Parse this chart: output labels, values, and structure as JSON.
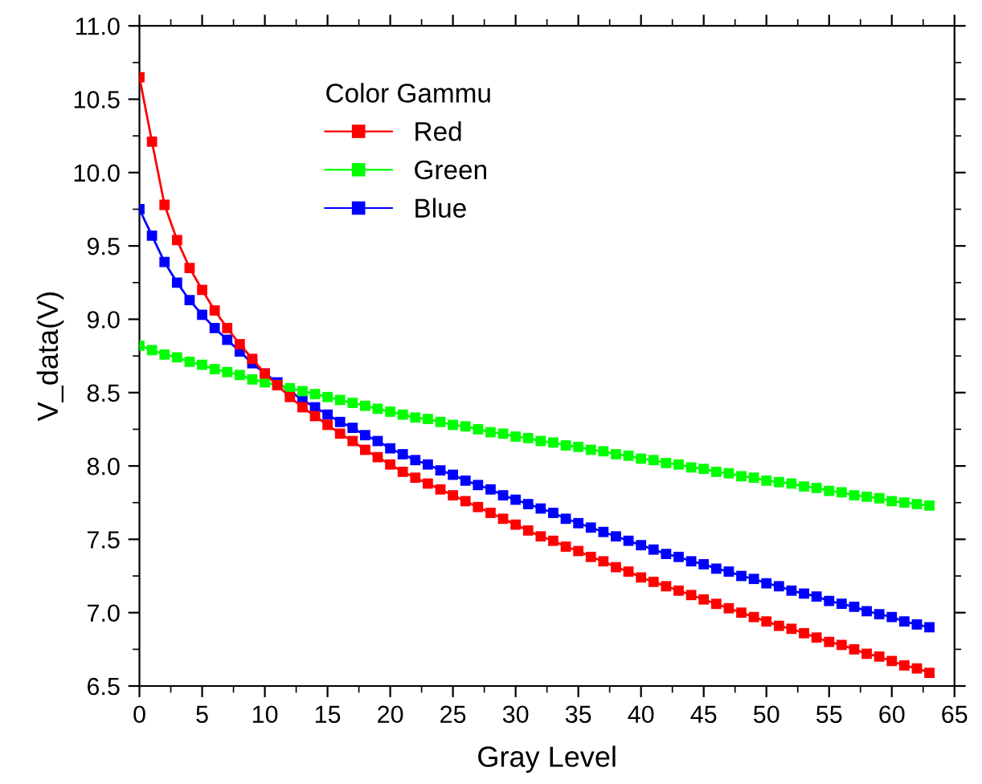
{
  "chart_data": {
    "type": "line",
    "xlabel": "Gray Level",
    "ylabel": "V_data(V)",
    "legend_title": "Color Gammu",
    "x": [
      0,
      1,
      2,
      3,
      4,
      5,
      6,
      7,
      8,
      9,
      10,
      11,
      12,
      13,
      14,
      15,
      16,
      17,
      18,
      19,
      20,
      21,
      22,
      23,
      24,
      25,
      26,
      27,
      28,
      29,
      30,
      31,
      32,
      33,
      34,
      35,
      36,
      37,
      38,
      39,
      40,
      41,
      42,
      43,
      44,
      45,
      46,
      47,
      48,
      49,
      50,
      51,
      52,
      53,
      54,
      55,
      56,
      57,
      58,
      59,
      60,
      61,
      62,
      63
    ],
    "series": [
      {
        "name": "Red",
        "color": "#ff0000",
        "values": [
          10.65,
          10.21,
          9.78,
          9.54,
          9.35,
          9.2,
          9.06,
          8.94,
          8.83,
          8.73,
          8.63,
          8.55,
          8.47,
          8.4,
          8.34,
          8.28,
          8.22,
          8.17,
          8.11,
          8.06,
          8.01,
          7.96,
          7.92,
          7.88,
          7.84,
          7.8,
          7.76,
          7.72,
          7.68,
          7.64,
          7.6,
          7.56,
          7.52,
          7.49,
          7.45,
          7.42,
          7.38,
          7.35,
          7.31,
          7.28,
          7.24,
          7.21,
          7.18,
          7.15,
          7.12,
          7.09,
          7.06,
          7.03,
          7.0,
          6.97,
          6.94,
          6.91,
          6.89,
          6.86,
          6.83,
          6.8,
          6.78,
          6.75,
          6.72,
          6.7,
          6.67,
          6.64,
          6.62,
          6.59
        ]
      },
      {
        "name": "Green",
        "color": "#00ff00",
        "values": [
          8.82,
          8.79,
          8.76,
          8.74,
          8.71,
          8.69,
          8.66,
          8.64,
          8.62,
          8.59,
          8.57,
          8.55,
          8.53,
          8.51,
          8.49,
          8.47,
          8.45,
          8.43,
          8.41,
          8.39,
          8.37,
          8.35,
          8.33,
          8.32,
          8.3,
          8.28,
          8.27,
          8.25,
          8.23,
          8.22,
          8.2,
          8.19,
          8.17,
          8.16,
          8.14,
          8.13,
          8.11,
          8.1,
          8.08,
          8.07,
          8.05,
          8.04,
          8.02,
          8.01,
          7.99,
          7.98,
          7.96,
          7.95,
          7.93,
          7.92,
          7.9,
          7.89,
          7.88,
          7.86,
          7.85,
          7.83,
          7.82,
          7.8,
          7.79,
          7.78,
          7.76,
          7.75,
          7.74,
          7.73
        ]
      },
      {
        "name": "Blue",
        "color": "#0000ff",
        "values": [
          9.75,
          9.57,
          9.39,
          9.25,
          9.13,
          9.03,
          8.94,
          8.86,
          8.78,
          8.7,
          8.63,
          8.57,
          8.51,
          8.45,
          8.4,
          8.35,
          8.3,
          8.26,
          8.21,
          8.17,
          8.12,
          8.08,
          8.04,
          8.01,
          7.97,
          7.94,
          7.9,
          7.87,
          7.84,
          7.8,
          7.77,
          7.74,
          7.71,
          7.68,
          7.64,
          7.61,
          7.58,
          7.55,
          7.52,
          7.49,
          7.46,
          7.43,
          7.4,
          7.38,
          7.35,
          7.33,
          7.3,
          7.28,
          7.25,
          7.23,
          7.2,
          7.18,
          7.15,
          7.13,
          7.11,
          7.08,
          7.06,
          7.04,
          7.01,
          6.99,
          6.97,
          6.94,
          6.92,
          6.9
        ]
      }
    ],
    "xlim": [
      0,
      65
    ],
    "xticks": [
      0,
      5,
      10,
      15,
      20,
      25,
      30,
      35,
      40,
      45,
      50,
      55,
      60,
      65
    ],
    "ylim": [
      6.5,
      11.0
    ],
    "yticks": [
      {
        "value": 6.5,
        "label": "6.5"
      },
      {
        "value": 7.0,
        "label": "7.0"
      },
      {
        "value": 7.5,
        "label": "7.5"
      },
      {
        "value": 8.0,
        "label": "8.0"
      },
      {
        "value": 8.5,
        "label": "8.5"
      },
      {
        "value": 9.0,
        "label": "9.0"
      },
      {
        "value": 9.5,
        "label": "9.5"
      },
      {
        "value": 10.0,
        "label": "10.0"
      },
      {
        "value": 10.5,
        "label": "10.5"
      },
      {
        "value": 11.0,
        "label": "11.0"
      }
    ],
    "marker": "square",
    "line_style": "solid",
    "legend": "top",
    "grid": false
  }
}
